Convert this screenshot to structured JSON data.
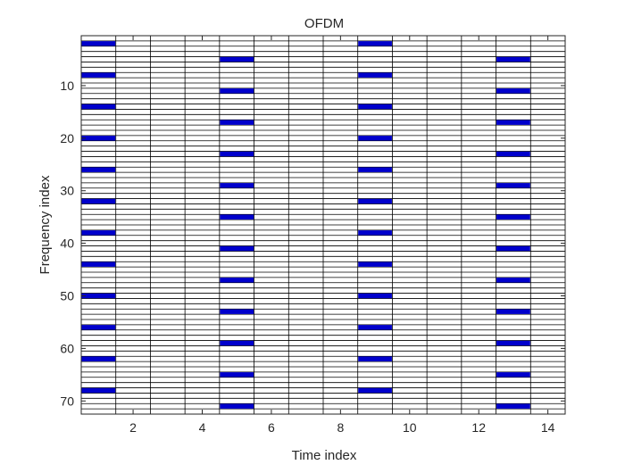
{
  "chart_data": {
    "type": "heatmap",
    "title": "OFDM",
    "xlabel": "Time index",
    "ylabel": "Frequency index",
    "xlim": [
      0.5,
      14.5
    ],
    "ylim": [
      0.5,
      72.5
    ],
    "y_reversed": true,
    "grid": "cell boundaries",
    "grid_color": "#000000",
    "marker_color": "#0000cc",
    "background_color": "#ffffff",
    "x_ticks": [
      2,
      4,
      6,
      8,
      10,
      12,
      14
    ],
    "y_ticks": [
      10,
      20,
      30,
      40,
      50,
      60,
      70
    ],
    "time_columns": [
      1,
      2,
      3,
      4,
      5,
      6,
      7,
      8,
      9,
      10,
      11,
      12,
      13,
      14
    ],
    "frequency_rows": 72,
    "pilot_series": [
      {
        "time_index": 1,
        "frequency_indices": [
          2,
          8,
          14,
          20,
          26,
          32,
          38,
          44,
          50,
          56,
          62,
          68
        ]
      },
      {
        "time_index": 5,
        "frequency_indices": [
          5,
          11,
          17,
          23,
          29,
          35,
          41,
          47,
          53,
          59,
          65,
          71
        ]
      },
      {
        "time_index": 9,
        "frequency_indices": [
          2,
          8,
          14,
          20,
          26,
          32,
          38,
          44,
          50,
          56,
          62,
          68
        ]
      },
      {
        "time_index": 13,
        "frequency_indices": [
          5,
          11,
          17,
          23,
          29,
          35,
          41,
          47,
          53,
          59,
          65,
          71
        ]
      }
    ]
  }
}
